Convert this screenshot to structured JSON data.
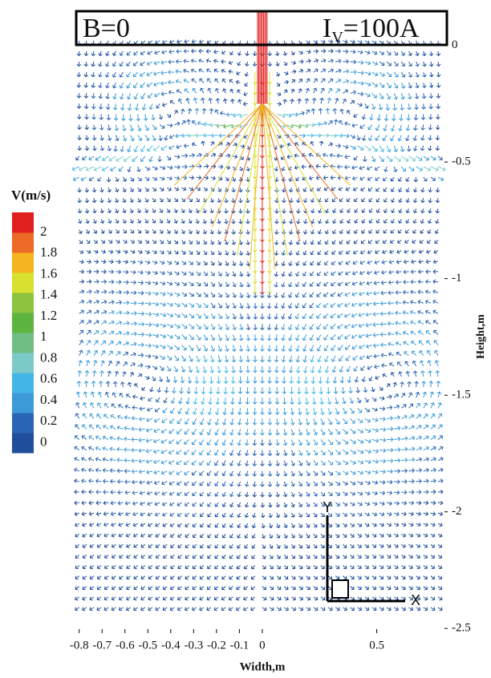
{
  "chart_data": {
    "type": "vector",
    "annotation_left": "B=0",
    "annotation_right": [
      "I",
      "V",
      "=100A"
    ],
    "x_label": "Width,m",
    "y_label": "Height,m",
    "xlim": [
      -0.82,
      0.81
    ],
    "ylim": [
      -2.52,
      0.15
    ],
    "xticks": [
      -0.8,
      -0.7,
      -0.6,
      -0.5,
      -0.4,
      -0.3,
      -0.2,
      -0.1,
      0,
      0.5
    ],
    "yticks": [
      0,
      -0.5,
      -1,
      -1.5,
      -2,
      -2.5
    ],
    "colorbar": {
      "title": "V(m/s)",
      "ticks": [
        2,
        1.8,
        1.6,
        1.4,
        1.2,
        1,
        0.8,
        0.6,
        0.4,
        0.2,
        0
      ],
      "colors": [
        "#1f4e9c",
        "#2a64b4",
        "#3c9ad8",
        "#44b6e6",
        "#7ccac8",
        "#6fbe84",
        "#5db540",
        "#8cc43f",
        "#d8e030",
        "#f5b51e",
        "#ec6a25",
        "#e0201e"
      ]
    },
    "axis_icon": [
      "Y",
      "X"
    ]
  }
}
